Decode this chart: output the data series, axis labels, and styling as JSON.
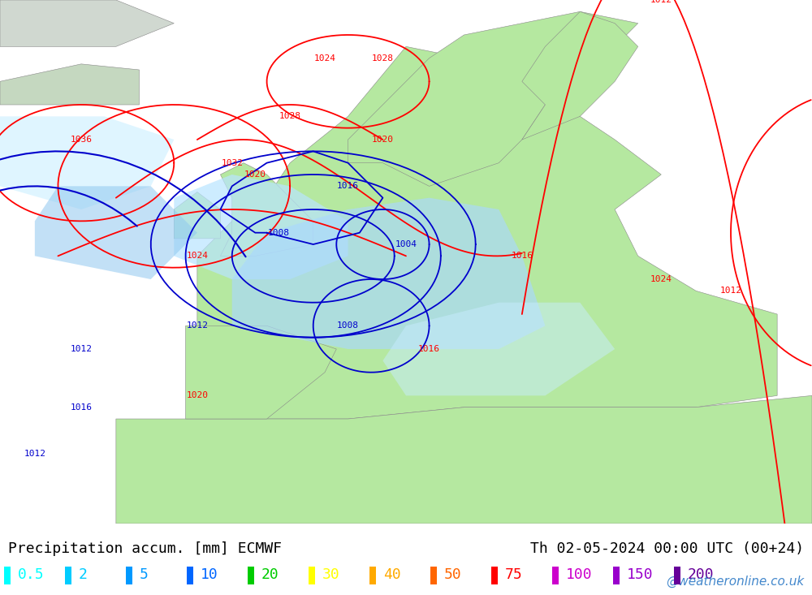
{
  "title_left": "Precipitation accum. [mm] ECMWF",
  "title_right": "Th 02-05-2024 00:00 UTC (00+24)",
  "watermark": "@weatheronline.co.uk",
  "legend_values": [
    "0.5",
    "2",
    "5",
    "10",
    "20",
    "30",
    "40",
    "50",
    "75",
    "100",
    "150",
    "200"
  ],
  "legend_colors": [
    "#00ffff",
    "#00ccff",
    "#0099ff",
    "#0066ff",
    "#00cc00",
    "#ffff00",
    "#ffaa00",
    "#ff6600",
    "#ff0000",
    "#cc00cc",
    "#9900cc",
    "#660099"
  ],
  "bg_color": "#e8e8e8",
  "land_color_green": "#b5e8a0",
  "land_color_gray": "#d0d0d0",
  "sea_color": "#d0e8f0",
  "precip_light_blue": "#aaddff",
  "precip_blue": "#88ccff",
  "contour_red_color": "#ff0000",
  "contour_blue_color": "#0000cc",
  "font_size_title": 13,
  "font_size_legend": 13,
  "font_size_watermark": 11
}
